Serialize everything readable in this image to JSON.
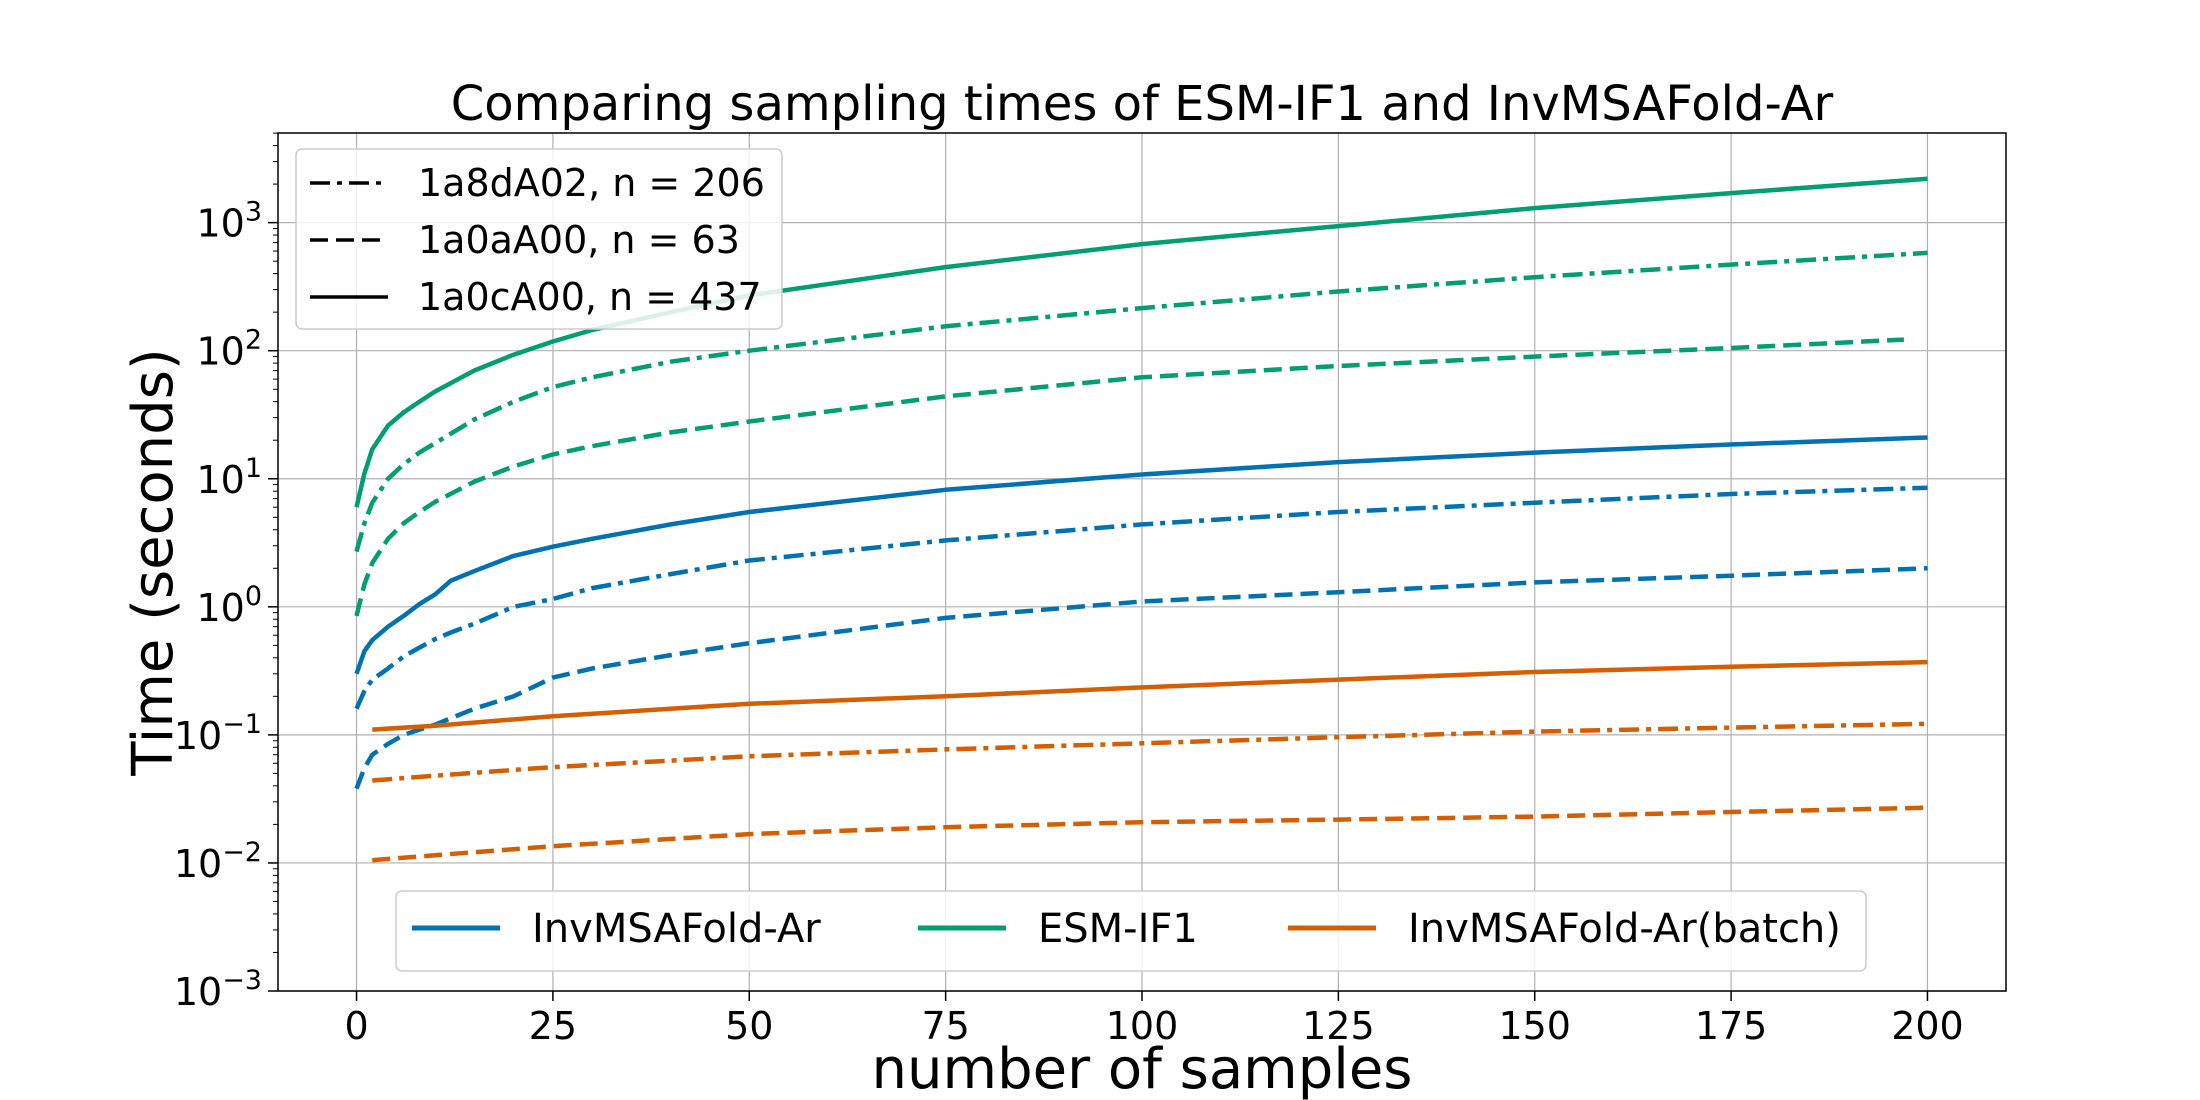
{
  "chart_data": {
    "type": "line",
    "title": "Comparing sampling times of ESM-IF1 and InvMSAFold-Ar",
    "xlabel": "number of samples",
    "ylabel": "Time (seconds)",
    "xlim": [
      -10,
      210
    ],
    "ylim_log10": [
      -3,
      3.7
    ],
    "yscale": "log",
    "grid": true,
    "x_ticks": [
      0,
      25,
      50,
      75,
      100,
      125,
      150,
      175,
      200
    ],
    "x_tick_labels": [
      "0",
      "25",
      "50",
      "75",
      "100",
      "125",
      "150",
      "175",
      "200"
    ],
    "y_ticks": [
      {
        "base": "10",
        "exp": "−3",
        "value": -3
      },
      {
        "base": "10",
        "exp": "−2",
        "value": -2
      },
      {
        "base": "10",
        "exp": "−1",
        "value": -1
      },
      {
        "base": "10",
        "exp": "0",
        "value": 0
      },
      {
        "base": "10",
        "exp": "1",
        "value": 1
      },
      {
        "base": "10",
        "exp": "2",
        "value": 2
      },
      {
        "base": "10",
        "exp": "3",
        "value": 3
      }
    ],
    "models": [
      {
        "name": "InvMSAFold-Ar",
        "color": "#0072b2"
      },
      {
        "name": "ESM-IF1",
        "color": "#009e73"
      },
      {
        "name": "InvMSAFold-Ar(batch)",
        "color": "#d55e00"
      }
    ],
    "proteins": [
      {
        "name": "1a8dA02, n = 206",
        "style": "dashdot"
      },
      {
        "name": "1a0aA00, n = 63",
        "style": "dashed"
      },
      {
        "name": "1a0cA00, n = 437",
        "style": "solid"
      }
    ],
    "series": [
      {
        "model": "ESM-IF1",
        "protein": "1a0cA00, n = 437",
        "style": "solid",
        "x": [
          0,
          1,
          2,
          4,
          6,
          8,
          10,
          15,
          20,
          25,
          30,
          40,
          50,
          75,
          100,
          125,
          150,
          175,
          200
        ],
        "y": [
          6,
          11,
          17,
          26,
          33,
          40,
          48,
          70,
          93,
          118,
          145,
          200,
          270,
          450,
          680,
          940,
          1300,
          1700,
          2200
        ]
      },
      {
        "model": "ESM-IF1",
        "protein": "1a8dA02, n = 206",
        "style": "dashdot",
        "x": [
          0,
          1,
          2,
          4,
          6,
          8,
          10,
          15,
          20,
          25,
          30,
          40,
          50,
          75,
          100,
          125,
          150,
          175,
          200
        ],
        "y": [
          2.7,
          4.5,
          6.5,
          10,
          13,
          16,
          19,
          29,
          40,
          52,
          62,
          82,
          100,
          155,
          215,
          290,
          375,
          470,
          580
        ]
      },
      {
        "model": "ESM-IF1",
        "protein": "1a0aA00, n = 63",
        "style": "dashed",
        "x": [
          0,
          1,
          2,
          4,
          6,
          8,
          10,
          15,
          20,
          25,
          30,
          40,
          50,
          75,
          100,
          125,
          150,
          175,
          197
        ],
        "y": [
          0.85,
          1.5,
          2.2,
          3.4,
          4.5,
          5.5,
          6.6,
          9.5,
          12.5,
          15.5,
          18,
          23,
          28,
          44,
          62,
          76,
          90,
          105,
          122
        ]
      },
      {
        "model": "InvMSAFold-Ar",
        "protein": "1a0cA00, n = 437",
        "style": "solid",
        "x": [
          0,
          1,
          2,
          4,
          6,
          8,
          10,
          12,
          15,
          20,
          25,
          30,
          40,
          50,
          75,
          100,
          125,
          150,
          175,
          200
        ],
        "y": [
          0.3,
          0.45,
          0.55,
          0.7,
          0.85,
          1.05,
          1.25,
          1.6,
          1.9,
          2.5,
          2.95,
          3.4,
          4.4,
          5.5,
          8.2,
          10.8,
          13.5,
          16,
          18.5,
          21
        ]
      },
      {
        "model": "InvMSAFold-Ar",
        "protein": "1a8dA02, n = 206",
        "style": "dashdot",
        "x": [
          0,
          1,
          2,
          4,
          6,
          8,
          10,
          12,
          15,
          20,
          25,
          30,
          40,
          50,
          75,
          100,
          125,
          150,
          175,
          200
        ],
        "y": [
          0.16,
          0.22,
          0.27,
          0.33,
          0.41,
          0.48,
          0.56,
          0.63,
          0.74,
          1.0,
          1.15,
          1.4,
          1.8,
          2.3,
          3.3,
          4.4,
          5.5,
          6.5,
          7.6,
          8.5
        ]
      },
      {
        "model": "InvMSAFold-Ar",
        "protein": "1a0aA00, n = 63",
        "style": "dashed",
        "x": [
          0,
          1,
          2,
          4,
          6,
          8,
          10,
          12,
          15,
          20,
          25,
          30,
          40,
          50,
          75,
          100,
          125,
          150,
          175,
          200
        ],
        "y": [
          0.038,
          0.055,
          0.07,
          0.085,
          0.1,
          0.11,
          0.12,
          0.135,
          0.16,
          0.2,
          0.28,
          0.33,
          0.42,
          0.52,
          0.82,
          1.1,
          1.3,
          1.55,
          1.75,
          2.0
        ]
      },
      {
        "model": "InvMSAFold-Ar(batch)",
        "protein": "1a0cA00, n = 437",
        "style": "solid",
        "x": [
          2,
          10,
          25,
          50,
          75,
          100,
          125,
          150,
          175,
          200
        ],
        "y": [
          0.11,
          0.118,
          0.14,
          0.175,
          0.2,
          0.235,
          0.27,
          0.31,
          0.34,
          0.37
        ]
      },
      {
        "model": "InvMSAFold-Ar(batch)",
        "protein": "1a8dA02, n = 206",
        "style": "dashdot",
        "x": [
          2,
          10,
          25,
          50,
          75,
          100,
          125,
          150,
          175,
          200
        ],
        "y": [
          0.044,
          0.048,
          0.056,
          0.068,
          0.077,
          0.086,
          0.096,
          0.106,
          0.114,
          0.122
        ]
      },
      {
        "model": "InvMSAFold-Ar(batch)",
        "protein": "1a0aA00, n = 63",
        "style": "dashed",
        "x": [
          2,
          10,
          25,
          50,
          75,
          100,
          125,
          150,
          175,
          200
        ],
        "y": [
          0.0105,
          0.0115,
          0.0135,
          0.0168,
          0.019,
          0.0208,
          0.0218,
          0.023,
          0.025,
          0.027
        ]
      }
    ]
  }
}
